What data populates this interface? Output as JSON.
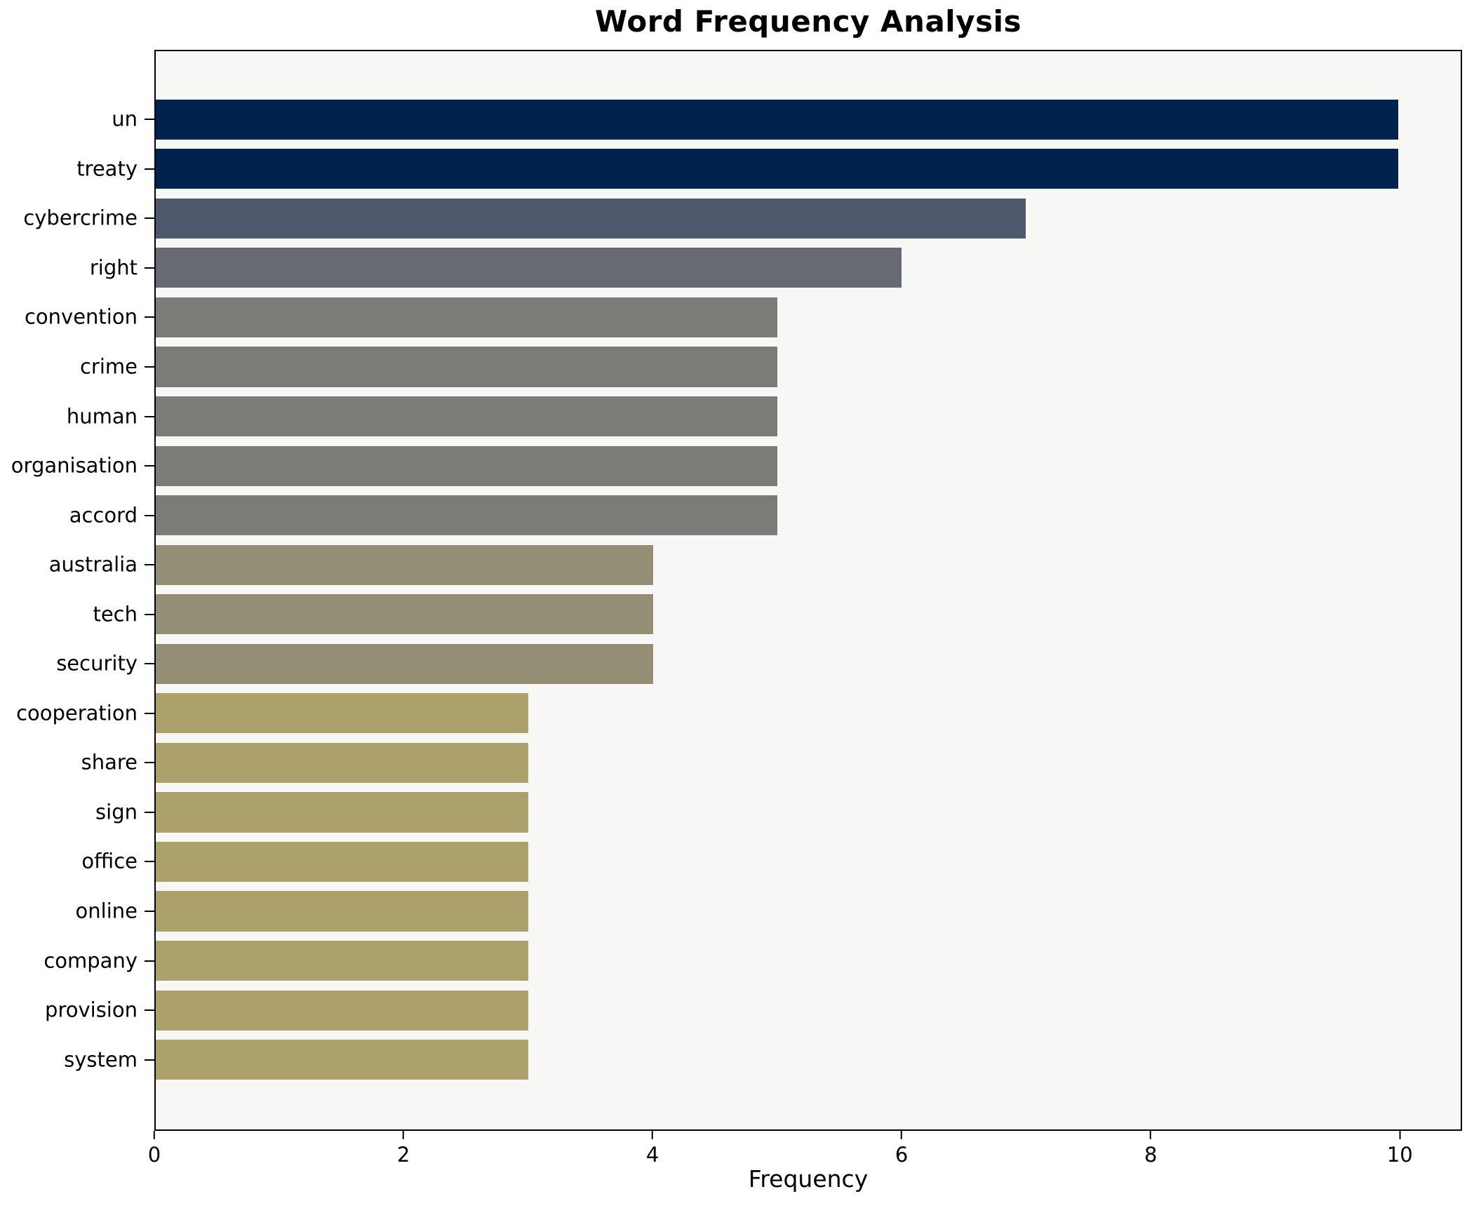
{
  "chart_data": {
    "type": "bar",
    "orientation": "horizontal",
    "title": "Word Frequency Analysis",
    "xlabel": "Frequency",
    "ylabel": "",
    "grid": false,
    "legend": false,
    "xlim": [
      0,
      10.5
    ],
    "x_ticks": [
      0,
      2,
      4,
      6,
      8,
      10
    ],
    "categories": [
      "un",
      "treaty",
      "cybercrime",
      "right",
      "convention",
      "crime",
      "human",
      "organisation",
      "accord",
      "australia",
      "tech",
      "security",
      "cooperation",
      "share",
      "sign",
      "office",
      "online",
      "company",
      "provision",
      "system"
    ],
    "values": [
      10,
      10,
      7,
      6,
      5,
      5,
      5,
      5,
      5,
      4,
      4,
      4,
      3,
      3,
      3,
      3,
      3,
      3,
      3,
      3
    ],
    "bar_colors": [
      "#00224e",
      "#00224e",
      "#4e576b",
      "#666a73",
      "#7b7b77",
      "#7b7b77",
      "#7b7b77",
      "#7b7b77",
      "#7b7b77",
      "#948f74",
      "#948f74",
      "#948f74",
      "#aca16b",
      "#aca16b",
      "#aca16b",
      "#aca16b",
      "#aca16b",
      "#aca16b",
      "#aca16b",
      "#aca16b"
    ]
  },
  "colors": {
    "figure_bg": "#ffffff",
    "plot_bg": "#f7f7f6",
    "spine": "#000000",
    "text": "#000000"
  }
}
